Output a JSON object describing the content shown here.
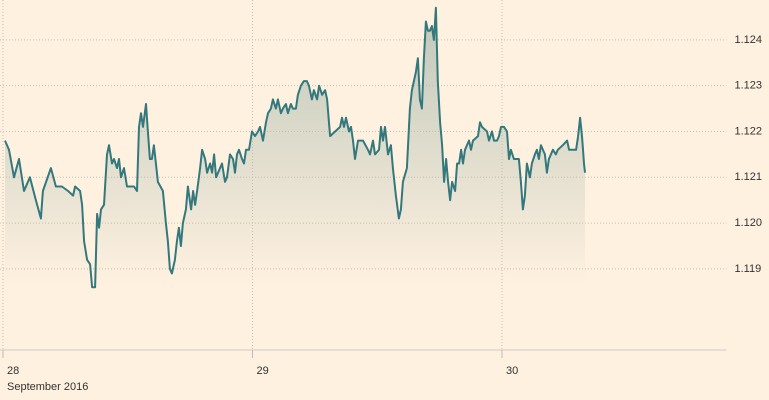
{
  "chart_data": {
    "type": "area",
    "x_caption": "September 2016",
    "xlim": [
      28,
      30.9
    ],
    "xticks": [
      28,
      29,
      30
    ],
    "ylim": [
      1.11723,
      1.12487
    ],
    "yticks": [
      {
        "value": 1.119,
        "label": "1.119"
      },
      {
        "value": 1.12,
        "label": "1.120"
      },
      1.121,
      1.122,
      1.123,
      1.124
    ],
    "grid": true,
    "color": "#33787c",
    "fill_color": "#b3c0b3",
    "x": [
      28.008,
      28.024,
      28.044,
      28.064,
      28.084,
      28.108,
      28.132,
      28.152,
      28.16,
      28.192,
      28.212,
      28.236,
      28.261,
      28.281,
      28.289,
      28.309,
      28.317,
      28.325,
      28.337,
      28.349,
      28.357,
      28.369,
      28.377,
      28.385,
      28.393,
      28.405,
      28.417,
      28.425,
      28.437,
      28.445,
      28.457,
      28.465,
      28.473,
      28.485,
      28.497,
      28.525,
      28.537,
      28.545,
      28.553,
      28.561,
      28.573,
      28.581,
      28.589,
      28.597,
      28.605,
      28.613,
      28.621,
      28.641,
      28.653,
      28.661,
      28.669,
      28.677,
      28.689,
      28.697,
      28.705,
      28.713,
      28.721,
      28.733,
      28.741,
      28.754,
      28.762,
      28.77,
      28.778,
      28.79,
      28.798,
      28.81,
      28.818,
      28.83,
      28.838,
      28.846,
      28.854,
      28.878,
      28.89,
      28.898,
      28.91,
      28.922,
      28.93,
      28.938,
      28.946,
      28.958,
      28.966,
      28.974,
      28.986,
      28.998,
      29.01,
      29.022,
      29.03,
      29.042,
      29.054,
      29.062,
      29.074,
      29.082,
      29.094,
      29.102,
      29.114,
      29.122,
      29.134,
      29.142,
      29.154,
      29.162,
      29.174,
      29.182,
      29.194,
      29.206,
      29.218,
      29.226,
      29.238,
      29.246,
      29.259,
      29.267,
      29.279,
      29.291,
      29.299,
      29.311,
      29.331,
      29.351,
      29.359,
      29.367,
      29.375,
      29.387,
      29.395,
      29.403,
      29.411,
      29.423,
      29.443,
      29.463,
      29.471,
      29.483,
      29.491,
      29.507,
      29.515,
      29.523,
      29.531,
      29.543,
      29.555,
      29.563,
      29.575,
      29.587,
      29.595,
      29.603,
      29.619,
      29.631,
      29.639,
      29.647,
      29.655,
      29.663,
      29.671,
      29.679,
      29.687,
      29.695,
      29.703,
      29.711,
      29.719,
      29.727,
      29.735,
      29.743,
      29.752,
      29.76,
      29.768,
      29.776,
      29.784,
      29.792,
      29.8,
      29.812,
      29.82,
      29.828,
      29.836,
      29.844,
      29.852,
      29.868,
      29.876,
      29.884,
      29.904,
      29.912,
      29.92,
      29.94,
      29.948,
      29.96,
      29.968,
      29.98,
      29.988,
      29.996,
      30.008,
      30.02,
      30.028,
      30.036,
      30.048,
      30.068,
      30.076,
      30.084,
      30.092,
      30.1,
      30.112,
      30.12,
      30.132,
      30.14,
      30.148,
      30.156,
      30.172,
      30.18,
      30.188,
      30.204,
      30.216,
      30.224,
      30.244,
      30.261,
      30.269,
      30.289,
      30.297,
      30.305,
      30.313,
      30.321,
      30.329,
      30.333
    ],
    "values": [
      1.1218,
      1.1216,
      1.121,
      1.1214,
      1.1207,
      1.121,
      1.1205,
      1.1201,
      1.1207,
      1.1212,
      1.1208,
      1.1208,
      1.1207,
      1.1206,
      1.1208,
      1.1207,
      1.1204,
      1.1196,
      1.1192,
      1.1191,
      1.1186,
      1.1186,
      1.1202,
      1.1199,
      1.1203,
      1.1204,
      1.1215,
      1.1217,
      1.1213,
      1.1214,
      1.1212,
      1.1214,
      1.121,
      1.1212,
      1.1208,
      1.1208,
      1.1207,
      1.1221,
      1.1224,
      1.1221,
      1.1226,
      1.122,
      1.1214,
      1.1214,
      1.1217,
      1.1213,
      1.1209,
      1.1207,
      1.12,
      1.1196,
      1.119,
      1.1189,
      1.1192,
      1.1196,
      1.1199,
      1.1195,
      1.12,
      1.1203,
      1.1208,
      1.1203,
      1.1207,
      1.1204,
      1.1207,
      1.1212,
      1.1216,
      1.1214,
      1.1211,
      1.1213,
      1.1211,
      1.1215,
      1.121,
      1.1213,
      1.1209,
      1.121,
      1.1215,
      1.1214,
      1.1211,
      1.1215,
      1.1216,
      1.1214,
      1.1213,
      1.1216,
      1.1216,
      1.122,
      1.1219,
      1.122,
      1.1221,
      1.1218,
      1.1222,
      1.1224,
      1.1225,
      1.1227,
      1.1225,
      1.1227,
      1.1224,
      1.1225,
      1.1226,
      1.1224,
      1.1226,
      1.1225,
      1.1225,
      1.1228,
      1.123,
      1.1231,
      1.1231,
      1.123,
      1.1227,
      1.1229,
      1.1227,
      1.123,
      1.1228,
      1.1229,
      1.1227,
      1.1219,
      1.122,
      1.1221,
      1.1223,
      1.1221,
      1.1223,
      1.122,
      1.1221,
      1.1218,
      1.1214,
      1.1218,
      1.1218,
      1.1216,
      1.1215,
      1.1218,
      1.1215,
      1.1216,
      1.1221,
      1.1218,
      1.1221,
      1.1215,
      1.1217,
      1.1212,
      1.1206,
      1.1201,
      1.1203,
      1.1209,
      1.1212,
      1.1225,
      1.1229,
      1.1231,
      1.1233,
      1.1236,
      1.1227,
      1.1225,
      1.1236,
      1.1244,
      1.1242,
      1.1242,
      1.1243,
      1.124,
      1.1247,
      1.1231,
      1.1222,
      1.1217,
      1.1209,
      1.1214,
      1.1209,
      1.1205,
      1.1209,
      1.1207,
      1.1213,
      1.1213,
      1.1216,
      1.1213,
      1.1216,
      1.1218,
      1.1216,
      1.1218,
      1.1219,
      1.1222,
      1.1221,
      1.122,
      1.1218,
      1.122,
      1.1218,
      1.1218,
      1.1219,
      1.1221,
      1.1221,
      1.122,
      1.1214,
      1.1216,
      1.1214,
      1.1214,
      1.1209,
      1.1203,
      1.1206,
      1.1213,
      1.121,
      1.1213,
      1.1215,
      1.1216,
      1.1214,
      1.1217,
      1.1215,
      1.1211,
      1.1214,
      1.1216,
      1.1215,
      1.1216,
      1.1217,
      1.1218,
      1.1216,
      1.1216,
      1.1216,
      1.1219,
      1.1223,
      1.1219,
      1.1213,
      1.1211
    ]
  }
}
